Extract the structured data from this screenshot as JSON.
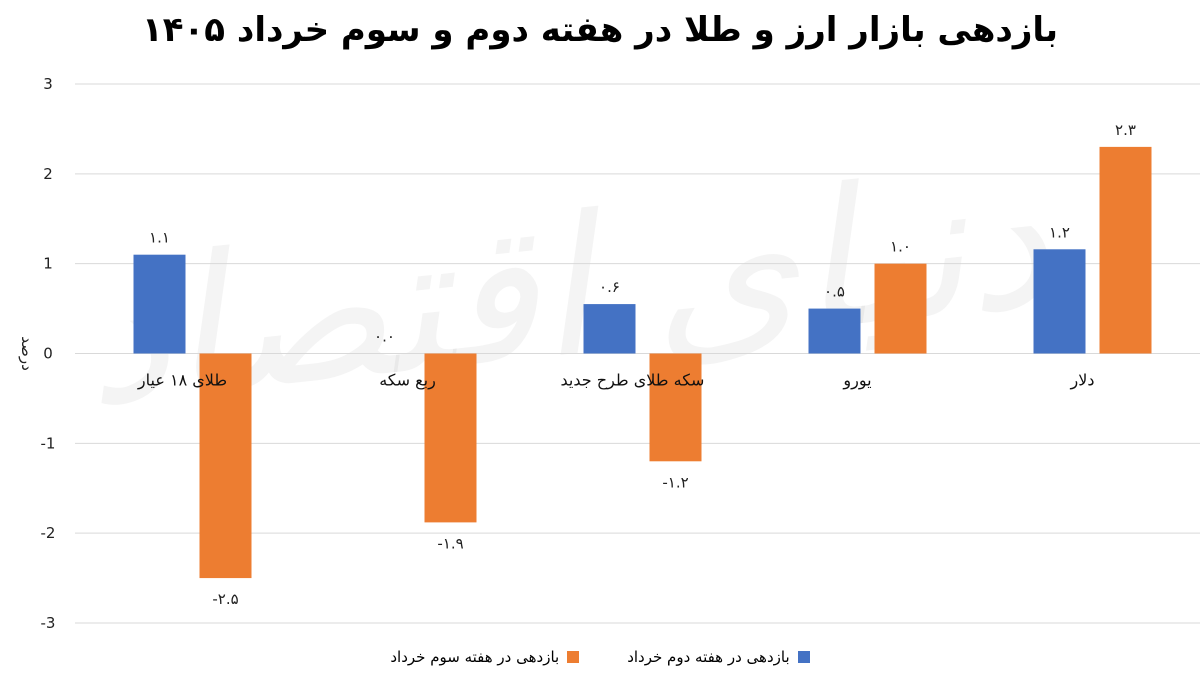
{
  "chart_data": {
    "type": "bar",
    "title": "بازدهی بازار ارز و طلا در هفته دوم و سوم خرداد ۱۴۰۵",
    "xlabel": "",
    "ylabel": "درصد",
    "ylim": [
      -3,
      3
    ],
    "yticks": [
      3,
      2,
      1,
      0,
      -1,
      -2,
      -3
    ],
    "ytick_labels": [
      "3",
      "2",
      "1",
      "0",
      "-1",
      "-2",
      "-3"
    ],
    "grid": true,
    "legend_position": "bottom",
    "categories": [
      "طلای ۱۸ عیار",
      "ربع سکه",
      "سکه طلای طرح جدید",
      "یورو",
      "دلار"
    ],
    "series": [
      {
        "name": "بازدهی در هفته دوم خرداد",
        "color": "#4472C4",
        "values": [
          1.1,
          0.0,
          0.55,
          0.5,
          1.16
        ],
        "labels": [
          "۱.۱",
          "۰.۰",
          "۰.۶",
          "۰.۵",
          "۱.۲"
        ]
      },
      {
        "name": "بازدهی در هفته سوم خرداد",
        "color": "#ED7D31",
        "values": [
          -2.5,
          -1.88,
          -1.2,
          1.0,
          2.3
        ],
        "labels": [
          "-۲.۵",
          "-۱.۹",
          "-۱.۲",
          "۱.۰",
          "۲.۳"
        ]
      }
    ]
  },
  "watermark": "دنیای اقتصاد"
}
